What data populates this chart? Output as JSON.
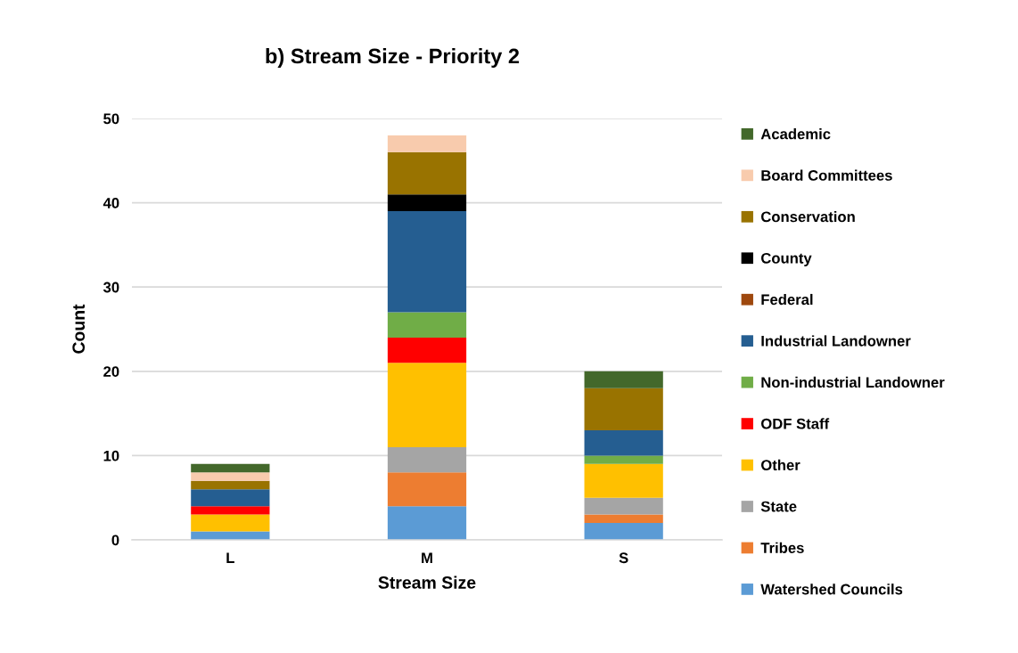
{
  "chart_data": {
    "type": "bar",
    "title": "b) Stream Size - Priority 2",
    "xlabel": "Stream Size",
    "ylabel": "Count",
    "categories": [
      "L",
      "M",
      "S"
    ],
    "series": [
      {
        "name": "Watershed Councils",
        "color": "#5b9bd5",
        "values": [
          1,
          4,
          2
        ]
      },
      {
        "name": "Tribes",
        "color": "#ed7d31",
        "values": [
          0,
          4,
          1
        ]
      },
      {
        "name": "State",
        "color": "#a5a5a5",
        "values": [
          0,
          3,
          2
        ]
      },
      {
        "name": "Other",
        "color": "#ffc000",
        "values": [
          2,
          10,
          4
        ]
      },
      {
        "name": "ODF Staff",
        "color": "#ff0000",
        "values": [
          1,
          3,
          0
        ]
      },
      {
        "name": "Non-industrial Landowner",
        "color": "#70ad47",
        "values": [
          0,
          3,
          1
        ]
      },
      {
        "name": "Industrial Landowner",
        "color": "#255e91",
        "values": [
          2,
          12,
          3
        ]
      },
      {
        "name": "Federal",
        "color": "#9e480e",
        "values": [
          0,
          0,
          0
        ]
      },
      {
        "name": "County",
        "color": "#000000",
        "values": [
          0,
          2,
          0
        ]
      },
      {
        "name": "Conservation",
        "color": "#997300",
        "values": [
          1,
          5,
          5
        ]
      },
      {
        "name": "Board Committees",
        "color": "#f8cbad",
        "values": [
          1,
          2,
          0
        ]
      },
      {
        "name": "Academic",
        "color": "#43682b",
        "values": [
          1,
          0,
          2
        ]
      }
    ],
    "stacked": true,
    "ylim": [
      0,
      50
    ],
    "yticks": [
      0,
      10,
      20,
      30,
      40,
      50
    ],
    "grid": "y",
    "legend": "right"
  }
}
